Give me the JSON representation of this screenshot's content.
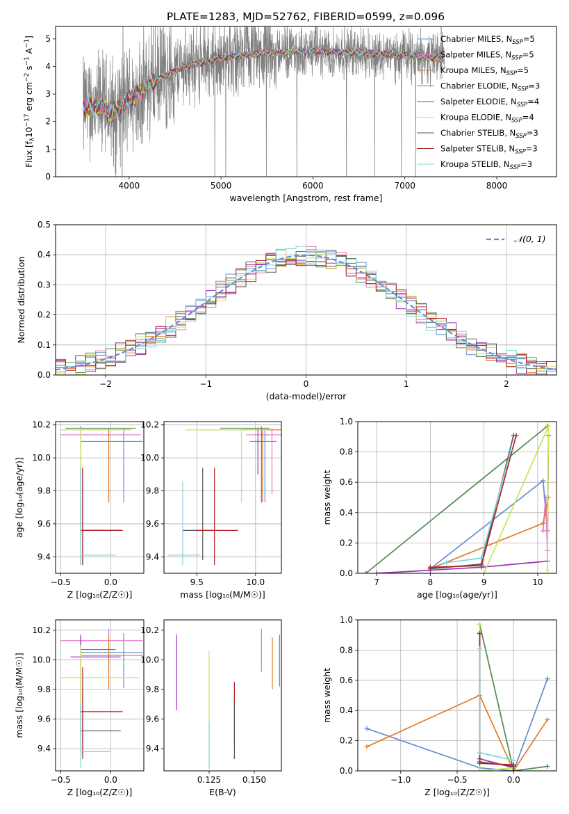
{
  "figure_title": "PLATE=1283, MJD=52762, FIBERID=0599, z=0.096",
  "colors": {
    "chabrier_miles": "#5f8dd3",
    "salpeter_miles": "#e377c2",
    "kroupa_miles": "#e07b28",
    "chabrier_elodie": "#4f8a4f",
    "salpeter_elodie": "#9b30b5",
    "kroupa_elodie": "#c9e35a",
    "chabrier_stelib": "#555555",
    "salpeter_stelib": "#b22222",
    "kroupa_stelib": "#7fd4d8",
    "data": "#808080",
    "gaussian": "#5b8dd9"
  },
  "legend_spectrum": [
    {
      "pre": "Chabrier MILES, N",
      "sub": "SSP",
      "post": "=5",
      "key": "chabrier_miles"
    },
    {
      "pre": "Salpeter MILES, N",
      "sub": "SSP",
      "post": "=5",
      "key": "salpeter_miles"
    },
    {
      "pre": "Kroupa MILES, N",
      "sub": "SSP",
      "post": "=5",
      "key": "kroupa_miles"
    },
    {
      "pre": "Chabrier ELODIE, N",
      "sub": "SSP",
      "post": "=3",
      "key": "chabrier_elodie"
    },
    {
      "pre": "Salpeter ELODIE, N",
      "sub": "SSP",
      "post": "=4",
      "key": "salpeter_elodie"
    },
    {
      "pre": "Kroupa ELODIE, N",
      "sub": "SSP",
      "post": "=4",
      "key": "kroupa_elodie"
    },
    {
      "pre": "Chabrier STELIB, N",
      "sub": "SSP",
      "post": "=3",
      "key": "chabrier_stelib"
    },
    {
      "pre": "Salpeter STELIB, N",
      "sub": "SSP",
      "post": "=3",
      "key": "salpeter_stelib"
    },
    {
      "pre": "Kroupa STELIB, N",
      "sub": "SSP",
      "post": "=3",
      "key": "kroupa_stelib"
    }
  ],
  "legend_hist": "𝒩(0, 1)",
  "chart_data": [
    {
      "id": "spectrum",
      "type": "line",
      "xlabel": "wavelength [Angstrom, rest frame]",
      "ylabel": "Flux [f_λ 10^-17 erg cm^-2 s^-1 A^-1]",
      "xlim": [
        3200,
        8650
      ],
      "ylim": [
        0,
        5.45
      ],
      "xticks": [
        4000,
        5000,
        6000,
        7000,
        8000
      ],
      "yticks": [
        0,
        1,
        2,
        3,
        4,
        5
      ],
      "grid": false,
      "legend_placement": "right",
      "data_range": [
        3500,
        7430
      ],
      "model_continuum": {
        "x": [
          3500,
          3700,
          3800,
          4000,
          4300,
          4600,
          5000,
          5500,
          6000,
          6500,
          7000,
          7430
        ],
        "y": [
          2.5,
          2.55,
          2.3,
          2.8,
          3.5,
          4.0,
          4.3,
          4.5,
          4.55,
          4.5,
          4.4,
          4.3
        ]
      }
    },
    {
      "id": "residual_hist",
      "type": "step",
      "xlabel": "(data-model)/error",
      "ylabel": "Normed distribution",
      "xlim": [
        -2.5,
        2.5
      ],
      "ylim": [
        0,
        0.5
      ],
      "xticks": [
        -2,
        -1,
        0,
        1,
        2
      ],
      "yticks": [
        0.0,
        0.1,
        0.2,
        0.3,
        0.4,
        0.5
      ],
      "grid": true,
      "legend_placement": "top-right",
      "bin_width": 0.1
    },
    {
      "id": "age_vs_Z",
      "type": "errorbar",
      "xlabel": "Z [log₁₀(Z/Z☉)]",
      "ylabel": "age  [log₁₀(age/yr)]",
      "xlim": [
        -0.55,
        0.33
      ],
      "ylim": [
        9.3,
        10.22
      ],
      "xticks": [
        -0.5,
        0.0
      ],
      "yticks": [
        9.4,
        9.6,
        9.8,
        10.0,
        10.2
      ],
      "grid": true,
      "points": [
        {
          "key": "chabrier_miles",
          "x": 0.13,
          "y": 10.1,
          "xlo": -0.3,
          "xhi": 0.32,
          "ylo": 9.73,
          "yhi": 10.18
        },
        {
          "key": "salpeter_miles",
          "x": -0.02,
          "y": 10.14,
          "xlo": -0.5,
          "xhi": 0.3,
          "ylo": 9.73,
          "yhi": 10.18
        },
        {
          "key": "kroupa_miles",
          "x": -0.02,
          "y": 10.17,
          "xlo": -0.3,
          "xhi": 0.2,
          "ylo": 9.73,
          "yhi": 10.18
        },
        {
          "key": "chabrier_elodie",
          "x": -0.3,
          "y": 10.18,
          "xlo": -0.45,
          "xhi": 0.25,
          "ylo": 9.5,
          "yhi": 10.19
        },
        {
          "key": "salpeter_elodie",
          "x": -0.3,
          "y": 9.56,
          "xlo": -0.3,
          "xhi": 0.1,
          "ylo": 9.35,
          "yhi": 9.94
        },
        {
          "key": "kroupa_elodie",
          "x": -0.3,
          "y": 10.17,
          "xlo": -0.5,
          "xhi": 0.2,
          "ylo": 9.73,
          "yhi": 10.18
        },
        {
          "key": "chabrier_stelib",
          "x": -0.28,
          "y": 9.56,
          "xlo": -0.3,
          "xhi": 0.1,
          "ylo": 9.35,
          "yhi": 9.94
        },
        {
          "key": "salpeter_stelib",
          "x": -0.28,
          "y": 9.56,
          "xlo": -0.3,
          "xhi": 0.12,
          "ylo": 9.35,
          "yhi": 9.94
        },
        {
          "key": "kroupa_stelib",
          "x": -0.3,
          "y": 9.41,
          "xlo": -0.3,
          "xhi": 0.05,
          "ylo": 9.35,
          "yhi": 9.94
        }
      ]
    },
    {
      "id": "age_vs_mass",
      "type": "errorbar",
      "xlabel": "mass [log₁₀(M/M☉)]",
      "ylabel": "",
      "xlim": [
        9.22,
        10.22
      ],
      "ylim": [
        9.3,
        10.22
      ],
      "xticks": [
        9.5,
        10.0
      ],
      "yticks": [
        9.4,
        9.6,
        9.8,
        10.0,
        10.2
      ],
      "grid": true,
      "points": [
        {
          "key": "chabrier_miles",
          "x": 10.08,
          "y": 10.1,
          "xlo": 9.95,
          "xhi": 10.18,
          "ylo": 9.73,
          "yhi": 10.18
        },
        {
          "key": "salpeter_miles",
          "x": 10.14,
          "y": 10.14,
          "xlo": 9.92,
          "xhi": 10.22,
          "ylo": 9.78,
          "yhi": 10.18
        },
        {
          "key": "kroupa_miles",
          "x": 10.06,
          "y": 10.17,
          "xlo": 9.85,
          "xhi": 10.22,
          "ylo": 9.73,
          "yhi": 10.18
        },
        {
          "key": "chabrier_elodie",
          "x": 10.05,
          "y": 10.18,
          "xlo": 9.7,
          "xhi": 10.12,
          "ylo": 9.73,
          "yhi": 10.19
        },
        {
          "key": "salpeter_elodie",
          "x": 10.02,
          "y": 10.17,
          "xlo": 9.9,
          "xhi": 10.1,
          "ylo": 9.9,
          "yhi": 10.18
        },
        {
          "key": "kroupa_elodie",
          "x": 9.88,
          "y": 10.17,
          "xlo": 9.4,
          "xhi": 10.1,
          "ylo": 9.73,
          "yhi": 10.18
        },
        {
          "key": "chabrier_stelib",
          "x": 9.55,
          "y": 9.56,
          "xlo": 9.38,
          "xhi": 9.68,
          "ylo": 9.38,
          "yhi": 9.94
        },
        {
          "key": "salpeter_stelib",
          "x": 9.65,
          "y": 9.56,
          "xlo": 9.5,
          "xhi": 9.85,
          "ylo": 9.35,
          "yhi": 9.94
        },
        {
          "key": "kroupa_stelib",
          "x": 9.38,
          "y": 9.41,
          "xlo": 9.25,
          "xhi": 9.53,
          "ylo": 9.35,
          "yhi": 9.86
        }
      ]
    },
    {
      "id": "weight_vs_age",
      "type": "line",
      "xlabel": "age  [log₁₀(age/yr)]",
      "ylabel": "mass weight",
      "xlim": [
        6.65,
        10.35
      ],
      "ylim": [
        0,
        1
      ],
      "xticks": [
        7,
        8,
        9,
        10
      ],
      "yticks": [
        0.0,
        0.2,
        0.4,
        0.6,
        0.8,
        1.0
      ],
      "grid": true,
      "series": [
        {
          "key": "chabrier_miles",
          "x": [
            8.0,
            10.1,
            10.18
          ],
          "y": [
            0.03,
            0.61,
            0.28
          ]
        },
        {
          "key": "salpeter_miles",
          "x": [
            10.1,
            10.15,
            10.18
          ],
          "y": [
            0.28,
            0.5,
            0.15
          ]
        },
        {
          "key": "kroupa_miles",
          "x": [
            8.0,
            10.1,
            10.2
          ],
          "y": [
            0.03,
            0.33,
            0.5
          ]
        },
        {
          "key": "chabrier_elodie",
          "x": [
            6.8,
            10.18
          ],
          "y": [
            0.0,
            0.97
          ]
        },
        {
          "key": "salpeter_elodie",
          "x": [
            7.0,
            8.0,
            8.95,
            10.18,
            10.2
          ],
          "y": [
            0.0,
            0.02,
            0.04,
            0.08,
            0.91
          ]
        },
        {
          "key": "kroupa_elodie",
          "x": [
            9.0,
            10.2,
            10.18
          ],
          "y": [
            0.0,
            0.97,
            0.02
          ]
        },
        {
          "key": "chabrier_stelib",
          "x": [
            8.0,
            8.95,
            9.55
          ],
          "y": [
            0.03,
            0.06,
            0.91
          ]
        },
        {
          "key": "salpeter_stelib",
          "x": [
            8.0,
            8.95,
            9.6
          ],
          "y": [
            0.04,
            0.05,
            0.91
          ]
        },
        {
          "key": "kroupa_stelib",
          "x": [
            8.3,
            8.95,
            9.5
          ],
          "y": [
            0.07,
            0.1,
            0.81
          ]
        }
      ]
    },
    {
      "id": "mass_vs_Z",
      "type": "errorbar",
      "xlabel": "Z [log₁₀(Z/Z☉)]",
      "ylabel": "mass [log₁₀(M/M☉)]",
      "xlim": [
        -0.55,
        0.33
      ],
      "ylim": [
        9.25,
        10.27
      ],
      "xticks": [
        -0.5,
        0.0
      ],
      "yticks": [
        9.4,
        9.6,
        9.8,
        10.0,
        10.2
      ],
      "grid": true,
      "points": [
        {
          "key": "chabrier_miles",
          "x": 0.13,
          "y": 10.05,
          "xlo": -0.3,
          "xhi": 0.32,
          "ylo": 9.81,
          "yhi": 10.18
        },
        {
          "key": "salpeter_miles",
          "x": -0.02,
          "y": 10.13,
          "xlo": -0.5,
          "xhi": 0.32,
          "ylo": 9.95,
          "yhi": 10.21
        },
        {
          "key": "kroupa_miles",
          "x": -0.02,
          "y": 10.03,
          "xlo": -0.3,
          "xhi": 0.32,
          "ylo": 9.8,
          "yhi": 10.16
        },
        {
          "key": "chabrier_elodie",
          "x": -0.3,
          "y": 10.07,
          "xlo": -0.3,
          "xhi": 0.05,
          "ylo": 9.5,
          "yhi": 10.15
        },
        {
          "key": "salpeter_elodie",
          "x": -0.3,
          "y": 10.02,
          "xlo": -0.4,
          "xhi": 0.1,
          "ylo": 9.4,
          "yhi": 10.17
        },
        {
          "key": "kroupa_elodie",
          "x": -0.3,
          "y": 9.88,
          "xlo": -0.5,
          "xhi": 0.28,
          "ylo": 9.42,
          "yhi": 10.1
        },
        {
          "key": "chabrier_stelib",
          "x": -0.28,
          "y": 9.52,
          "xlo": -0.3,
          "xhi": 0.1,
          "ylo": 9.33,
          "yhi": 9.8
        },
        {
          "key": "salpeter_stelib",
          "x": -0.28,
          "y": 9.65,
          "xlo": -0.3,
          "xhi": 0.12,
          "ylo": 9.35,
          "yhi": 9.95
        },
        {
          "key": "kroupa_stelib",
          "x": -0.3,
          "y": 9.38,
          "xlo": -0.3,
          "xhi": 0.0,
          "ylo": 9.27,
          "yhi": 9.7
        }
      ]
    },
    {
      "id": "mass_vs_ebv",
      "type": "errorbar",
      "xlabel": "E(B-V)",
      "ylabel": "",
      "xlim": [
        0.1,
        0.165
      ],
      "ylim": [
        9.25,
        10.27
      ],
      "xticks": [
        0.125,
        0.15
      ],
      "yticks": [
        9.4,
        9.6,
        9.8,
        10.0,
        10.2
      ],
      "grid": false,
      "points": [
        {
          "key": "salpeter_elodie",
          "x": 0.107,
          "ylo": 9.66,
          "yhi": 10.17
        },
        {
          "key": "kroupa_elodie",
          "x": 0.125,
          "ylo": 9.35,
          "yhi": 10.06
        },
        {
          "key": "kroupa_stelib",
          "x": 0.125,
          "ylo": 9.26,
          "yhi": 9.58
        },
        {
          "key": "salpeter_stelib",
          "x": 0.139,
          "ylo": 9.45,
          "yhi": 9.85
        },
        {
          "key": "chabrier_stelib",
          "x": 0.139,
          "ylo": 9.33,
          "yhi": 9.72
        },
        {
          "key": "salpeter_miles",
          "x": 0.154,
          "ylo": 9.92,
          "yhi": 10.21
        },
        {
          "key": "kroupa_miles",
          "x": 0.16,
          "ylo": 9.8,
          "yhi": 10.15
        },
        {
          "key": "chabrier_miles",
          "x": 0.164,
          "ylo": 9.82,
          "yhi": 10.17
        }
      ]
    },
    {
      "id": "weight_vs_Z",
      "type": "line",
      "xlabel": "Z [log₁₀(Z/Z☉)]",
      "ylabel": "mass weight",
      "xlim": [
        -1.38,
        0.38
      ],
      "ylim": [
        0,
        1
      ],
      "xticks": [
        -1.0,
        -0.5,
        0.0
      ],
      "yticks": [
        0.0,
        0.2,
        0.4,
        0.6,
        0.8,
        1.0
      ],
      "grid": true,
      "series": [
        {
          "key": "chabrier_miles",
          "x": [
            -1.3,
            -0.3,
            0.0,
            0.3
          ],
          "y": [
            0.28,
            0.02,
            0.0,
            0.61
          ]
        },
        {
          "key": "kroupa_miles",
          "x": [
            -1.3,
            -0.3,
            0.0,
            0.3
          ],
          "y": [
            0.16,
            0.5,
            0.0,
            0.34
          ]
        },
        {
          "key": "chabrier_elodie",
          "x": [
            -0.3,
            0.0,
            0.3
          ],
          "y": [
            0.97,
            0.0,
            0.03
          ]
        },
        {
          "key": "salpeter_elodie",
          "x": [
            -0.3,
            -0.3,
            0.0
          ],
          "y": [
            0.91,
            0.08,
            0.02
          ]
        },
        {
          "key": "kroupa_elodie",
          "x": [
            -0.3,
            -0.3,
            0.0
          ],
          "y": [
            0.97,
            0.0,
            0.02
          ]
        },
        {
          "key": "chabrier_stelib",
          "x": [
            -0.3,
            -0.3,
            0.0
          ],
          "y": [
            0.91,
            0.06,
            0.03
          ]
        },
        {
          "key": "salpeter_stelib",
          "x": [
            -0.3,
            -0.3,
            0.0,
            0.0
          ],
          "y": [
            0.91,
            0.05,
            0.04,
            0.0
          ]
        },
        {
          "key": "kroupa_stelib",
          "x": [
            -0.3,
            -0.3,
            0.0
          ],
          "y": [
            0.81,
            0.12,
            0.07
          ]
        }
      ]
    }
  ]
}
